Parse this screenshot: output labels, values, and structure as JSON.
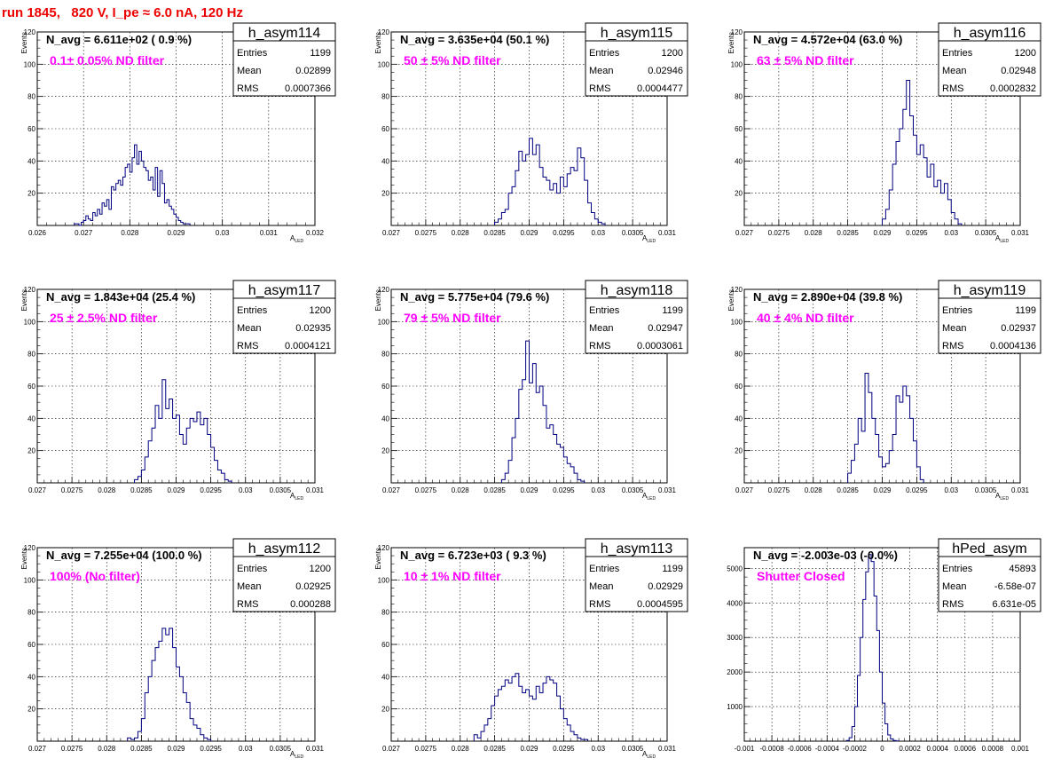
{
  "title": "run 1845,   820 V, I_pe ≈ 6.0 nA, 120 Hz",
  "colors": {
    "histogram": "#000080",
    "annotation": "#ff00ff",
    "title": "#ee0000",
    "grid": "#000000"
  },
  "chart_data": [
    {
      "type": "histogram",
      "name": "h_asym114",
      "stats": {
        "entries_label": "Entries",
        "entries": "1199",
        "mean_label": "Mean",
        "mean": "0.02899",
        "rms_label": "RMS",
        "rms": "0.0007366"
      },
      "navg": "N_avg = 6.611e+02 ( 0.9 %)",
      "filter": "0.1± 0.05% ND filter",
      "ylabel": "Events",
      "xlabel": "A",
      "xlabel_sub": "LED",
      "xlim": [
        0.026,
        0.032
      ],
      "ylim": [
        0,
        120
      ],
      "xticks": [
        0.026,
        0.027,
        0.028,
        0.029,
        0.03,
        0.031,
        0.032
      ],
      "xtick_labels": [
        "0.026",
        "0.027",
        "0.028",
        "0.029",
        "0.03",
        "0.031",
        "0.032"
      ],
      "yticks": [
        0,
        20,
        40,
        60,
        80,
        100,
        120
      ],
      "ytick_labels": [
        "",
        "20",
        "40",
        "60",
        "80",
        "100",
        "120"
      ],
      "grid": true,
      "bin_start": 0.0268,
      "bin_width": 5e-05,
      "counts": [
        1,
        1,
        0,
        2,
        3,
        6,
        4,
        3,
        8,
        6,
        10,
        7,
        14,
        12,
        16,
        10,
        24,
        22,
        26,
        28,
        25,
        30,
        36,
        38,
        33,
        42,
        50,
        38,
        46,
        40,
        36,
        34,
        28,
        30,
        22,
        36,
        18,
        34,
        26,
        14,
        16,
        12,
        10,
        7,
        5,
        3,
        2,
        1,
        1,
        1
      ]
    },
    {
      "type": "histogram",
      "name": "h_asym115",
      "stats": {
        "entries_label": "Entries",
        "entries": "1200",
        "mean_label": "Mean",
        "mean": "0.02946",
        "rms_label": "RMS",
        "rms": "0.0004477"
      },
      "navg": "N_avg = 3.635e+04 (50.1 %)",
      "filter": "50 ± 5% ND filter",
      "ylabel": "Events",
      "xlabel": "A",
      "xlabel_sub": "LED",
      "xlim": [
        0.027,
        0.031
      ],
      "ylim": [
        0,
        120
      ],
      "xticks": [
        0.027,
        0.0275,
        0.028,
        0.0285,
        0.029,
        0.0295,
        0.03,
        0.0305,
        0.031
      ],
      "xtick_labels": [
        "0.027",
        "0.0275",
        "0.028",
        "0.0285",
        "0.029",
        "0.0295",
        "0.03",
        "0.0305",
        "0.031"
      ],
      "yticks": [
        0,
        20,
        40,
        60,
        80,
        100,
        120
      ],
      "ytick_labels": [
        "",
        "20",
        "40",
        "60",
        "80",
        "100",
        "120"
      ],
      "grid": true,
      "bin_start": 0.0285,
      "bin_width": 5e-05,
      "counts": [
        2,
        4,
        8,
        10,
        20,
        24,
        34,
        46,
        40,
        44,
        54,
        44,
        50,
        36,
        30,
        28,
        22,
        26,
        20,
        30,
        24,
        32,
        36,
        34,
        48,
        42,
        28,
        14,
        8,
        4,
        2,
        1
      ]
    },
    {
      "type": "histogram",
      "name": "h_asym116",
      "stats": {
        "entries_label": "Entries",
        "entries": "1200",
        "mean_label": "Mean",
        "mean": "0.02948",
        "rms_label": "RMS",
        "rms": "0.0002832"
      },
      "navg": "N_avg = 4.572e+04 (63.0 %)",
      "filter": "63 ± 5% ND filter",
      "ylabel": "Events",
      "xlabel": "A",
      "xlabel_sub": "LED",
      "xlim": [
        0.027,
        0.031
      ],
      "ylim": [
        0,
        120
      ],
      "xticks": [
        0.027,
        0.0275,
        0.028,
        0.0285,
        0.029,
        0.0295,
        0.03,
        0.0305,
        0.031
      ],
      "xtick_labels": [
        "0.027",
        "0.0275",
        "0.028",
        "0.0285",
        "0.029",
        "0.0295",
        "0.03",
        "0.0305",
        "0.031"
      ],
      "yticks": [
        0,
        20,
        40,
        60,
        80,
        100,
        120
      ],
      "ytick_labels": [
        "",
        "20",
        "40",
        "60",
        "80",
        "100",
        "120"
      ],
      "grid": true,
      "bin_start": 0.029,
      "bin_width": 5e-05,
      "counts": [
        4,
        10,
        22,
        38,
        52,
        60,
        72,
        90,
        68,
        56,
        44,
        50,
        42,
        30,
        38,
        24,
        28,
        20,
        26,
        16,
        8,
        4,
        1
      ]
    },
    {
      "type": "histogram",
      "name": "h_asym117",
      "stats": {
        "entries_label": "Entries",
        "entries": "1200",
        "mean_label": "Mean",
        "mean": "0.02935",
        "rms_label": "RMS",
        "rms": "0.0004121"
      },
      "navg": "N_avg = 1.843e+04 (25.4 %)",
      "filter": "25 ± 2.5% ND filter",
      "ylabel": "Events",
      "xlabel": "A",
      "xlabel_sub": "LED",
      "xlim": [
        0.027,
        0.031
      ],
      "ylim": [
        0,
        120
      ],
      "xticks": [
        0.027,
        0.0275,
        0.028,
        0.0285,
        0.029,
        0.0295,
        0.03,
        0.0305,
        0.031
      ],
      "xtick_labels": [
        "0.027",
        "0.0275",
        "0.028",
        "0.0285",
        "0.029",
        "0.0295",
        "0.03",
        "0.0305",
        "0.031"
      ],
      "yticks": [
        0,
        20,
        40,
        60,
        80,
        100,
        120
      ],
      "ytick_labels": [
        "",
        "20",
        "40",
        "60",
        "80",
        "100",
        "120"
      ],
      "grid": true,
      "bin_start": 0.0284,
      "bin_width": 5e-05,
      "counts": [
        2,
        4,
        8,
        16,
        26,
        34,
        48,
        40,
        64,
        46,
        52,
        40,
        42,
        30,
        24,
        34,
        40,
        38,
        44,
        36,
        40,
        30,
        22,
        14,
        8,
        6,
        2,
        1
      ]
    },
    {
      "type": "histogram",
      "name": "h_asym118",
      "stats": {
        "entries_label": "Entries",
        "entries": "1199",
        "mean_label": "Mean",
        "mean": "0.02947",
        "rms_label": "RMS",
        "rms": "0.0003061"
      },
      "navg": "N_avg = 5.775e+04 (79.6 %)",
      "filter": "79 ± 5% ND filter",
      "ylabel": "Events",
      "xlabel": "A",
      "xlabel_sub": "LED",
      "xlim": [
        0.027,
        0.031
      ],
      "ylim": [
        0,
        120
      ],
      "xticks": [
        0.027,
        0.0275,
        0.028,
        0.0285,
        0.029,
        0.0295,
        0.03,
        0.0305,
        0.031
      ],
      "xtick_labels": [
        "0.027",
        "0.0275",
        "0.028",
        "0.0285",
        "0.029",
        "0.0295",
        "0.03",
        "0.0305",
        "0.031"
      ],
      "yticks": [
        0,
        20,
        40,
        60,
        80,
        100,
        120
      ],
      "ytick_labels": [
        "",
        "20",
        "40",
        "60",
        "80",
        "100",
        "120"
      ],
      "grid": true,
      "bin_start": 0.0286,
      "bin_width": 5e-05,
      "counts": [
        2,
        6,
        14,
        28,
        40,
        58,
        64,
        88,
        62,
        74,
        56,
        60,
        48,
        34,
        36,
        30,
        24,
        22,
        16,
        12,
        10,
        6,
        2,
        1
      ]
    },
    {
      "type": "histogram",
      "name": "h_asym119",
      "stats": {
        "entries_label": "Entries",
        "entries": "1199",
        "mean_label": "Mean",
        "mean": "0.02937",
        "rms_label": "RMS",
        "rms": "0.0004136"
      },
      "navg": "N_avg = 2.890e+04 (39.8 %)",
      "filter": "40 ± 4% ND filter",
      "ylabel": "Events",
      "xlabel": "A",
      "xlabel_sub": "LED",
      "xlim": [
        0.027,
        0.031
      ],
      "ylim": [
        0,
        120
      ],
      "xticks": [
        0.027,
        0.0275,
        0.028,
        0.0285,
        0.029,
        0.0295,
        0.03,
        0.0305,
        0.031
      ],
      "xtick_labels": [
        "0.027",
        "0.0275",
        "0.028",
        "0.0285",
        "0.029",
        "0.0295",
        "0.03",
        "0.0305",
        "0.031"
      ],
      "yticks": [
        0,
        20,
        40,
        60,
        80,
        100,
        120
      ],
      "ytick_labels": [
        "",
        "20",
        "40",
        "60",
        "80",
        "100",
        "120"
      ],
      "grid": true,
      "bin_start": 0.0285,
      "bin_width": 5e-05,
      "counts": [
        6,
        14,
        24,
        40,
        32,
        68,
        56,
        40,
        30,
        16,
        10,
        12,
        20,
        30,
        54,
        50,
        60,
        54,
        40,
        26,
        10,
        2
      ]
    },
    {
      "type": "histogram",
      "name": "h_asym112",
      "stats": {
        "entries_label": "Entries",
        "entries": "1200",
        "mean_label": "Mean",
        "mean": "0.02925",
        "rms_label": "RMS",
        "rms": "0.000288"
      },
      "navg": "N_avg = 7.255e+04 (100.0 %)",
      "filter": "100% (No filter)",
      "ylabel": "Events",
      "xlabel": "A",
      "xlabel_sub": "LED",
      "xlim": [
        0.027,
        0.031
      ],
      "ylim": [
        0,
        120
      ],
      "xticks": [
        0.027,
        0.0275,
        0.028,
        0.0285,
        0.029,
        0.0295,
        0.03,
        0.0305,
        0.031
      ],
      "xtick_labels": [
        "0.027",
        "0.0275",
        "0.028",
        "0.0285",
        "0.029",
        "0.0295",
        "0.03",
        "0.0305",
        "0.031"
      ],
      "yticks": [
        0,
        20,
        40,
        60,
        80,
        100,
        120
      ],
      "ytick_labels": [
        "",
        "20",
        "40",
        "60",
        "80",
        "100",
        "120"
      ],
      "grid": true,
      "bin_start": 0.0283,
      "bin_width": 5e-05,
      "counts": [
        2,
        1,
        2,
        6,
        14,
        30,
        40,
        50,
        58,
        62,
        70,
        66,
        70,
        58,
        46,
        40,
        30,
        24,
        14,
        10,
        8,
        4,
        2,
        1
      ]
    },
    {
      "type": "histogram",
      "name": "h_asym113",
      "stats": {
        "entries_label": "Entries",
        "entries": "1199",
        "mean_label": "Mean",
        "mean": "0.02929",
        "rms_label": "RMS",
        "rms": "0.0004595"
      },
      "navg": "N_avg = 6.723e+03 ( 9.3 %)",
      "filter": "10 ± 1% ND filter",
      "ylabel": "Events",
      "xlabel": "A",
      "xlabel_sub": "LED",
      "xlim": [
        0.027,
        0.031
      ],
      "ylim": [
        0,
        120
      ],
      "xticks": [
        0.027,
        0.0275,
        0.028,
        0.0285,
        0.029,
        0.0295,
        0.03,
        0.0305,
        0.031
      ],
      "xtick_labels": [
        "0.027",
        "0.0275",
        "0.028",
        "0.0285",
        "0.029",
        "0.0295",
        "0.03",
        "0.0305",
        "0.031"
      ],
      "yticks": [
        0,
        20,
        40,
        60,
        80,
        100,
        120
      ],
      "ytick_labels": [
        "",
        "20",
        "40",
        "60",
        "80",
        "100",
        "120"
      ],
      "grid": true,
      "bin_start": 0.0282,
      "bin_width": 5e-05,
      "counts": [
        4,
        2,
        6,
        10,
        14,
        22,
        28,
        32,
        34,
        38,
        36,
        40,
        42,
        34,
        30,
        32,
        28,
        26,
        34,
        30,
        36,
        40,
        38,
        36,
        28,
        20,
        14,
        10,
        6,
        4,
        2,
        1,
        1
      ]
    },
    {
      "type": "histogram",
      "name": "hPed_asym",
      "stats": {
        "entries_label": "Entries",
        "entries": "45893",
        "mean_label": "Mean",
        "mean": "-6.58e-07",
        "rms_label": "RMS",
        "rms": "6.631e-05"
      },
      "navg": "N_avg = -2.003e-03 (-0.0%)",
      "filter": "Shutter Closed",
      "ylabel": "",
      "xlabel": "",
      "xlabel_sub": "",
      "xlim": [
        -0.001,
        0.001
      ],
      "ylim": [
        0,
        5600
      ],
      "xticks": [
        -0.001,
        -0.0008,
        -0.0006,
        -0.0004,
        -0.0002,
        0,
        0.0002,
        0.0004,
        0.0006,
        0.0008,
        0.001
      ],
      "xtick_labels": [
        "-0.001",
        "-0.0008",
        "-0.0006",
        "-0.0004",
        "-0.0002",
        "0",
        "0.0002",
        "0.0004",
        "0.0006",
        "0.0008",
        "0.001"
      ],
      "yticks": [
        0,
        1000,
        2000,
        3000,
        4000,
        5000
      ],
      "ytick_labels": [
        "",
        "1000",
        "2000",
        "3000",
        "4000",
        "5000"
      ],
      "grid": true,
      "bin_start": -0.00026,
      "bin_width": 2e-05,
      "counts": [
        20,
        100,
        420,
        1000,
        1900,
        3000,
        4100,
        4900,
        5400,
        5200,
        4200,
        3200,
        2000,
        1100,
        500,
        180,
        60,
        20,
        5
      ]
    }
  ]
}
